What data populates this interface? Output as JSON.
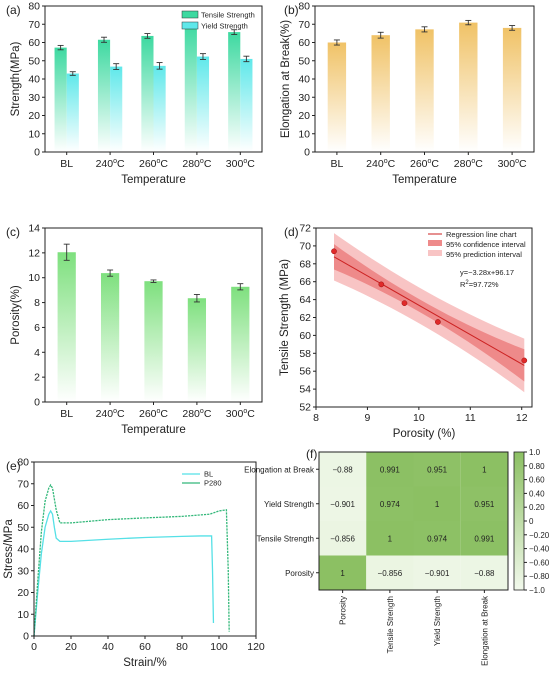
{
  "chart_data": [
    {
      "panel": "(a)",
      "type": "bar",
      "categories": [
        "BL",
        "240°C",
        "260°C",
        "280°C",
        "300°C"
      ],
      "xlabel": "Temperature",
      "ylabel": "Strength(MPa)",
      "ylim": [
        0,
        80
      ],
      "yticks": [
        0,
        10,
        20,
        30,
        40,
        50,
        60,
        70,
        80
      ],
      "legend_position": "top-right",
      "series": [
        {
          "name": "Tensile Strength",
          "values": [
            57.2,
            61.5,
            63.6,
            69.4,
            65.7
          ],
          "errors": [
            1.2,
            1.4,
            1.3,
            1.0,
            1.3
          ],
          "color": "#3dd9a0"
        },
        {
          "name": "Yield Strength",
          "values": [
            43.0,
            46.8,
            47.2,
            52.3,
            51.0
          ],
          "errors": [
            1.0,
            1.6,
            1.8,
            1.6,
            1.5
          ],
          "color": "#5fe8ea"
        }
      ]
    },
    {
      "panel": "(b)",
      "type": "bar",
      "categories": [
        "BL",
        "240°C",
        "260°C",
        "280°C",
        "300°C"
      ],
      "xlabel": "Temperature",
      "ylabel": "Elongation at Break(%)",
      "ylim": [
        0,
        80
      ],
      "yticks": [
        0,
        10,
        20,
        30,
        40,
        50,
        60,
        70,
        80
      ],
      "series": [
        {
          "values": [
            60.0,
            64.0,
            67.2,
            70.9,
            68.0
          ],
          "errors": [
            1.4,
            1.6,
            1.4,
            1.2,
            1.3
          ],
          "color": "#f0c266"
        }
      ]
    },
    {
      "panel": "(c)",
      "type": "bar",
      "categories": [
        "BL",
        "240°C",
        "260°C",
        "280°C",
        "300°C"
      ],
      "xlabel": "Temperature",
      "ylabel": "Porosity(%)",
      "ylim": [
        0,
        14
      ],
      "yticks": [
        0,
        2,
        4,
        6,
        8,
        10,
        12,
        14
      ],
      "series": [
        {
          "values": [
            12.05,
            10.37,
            9.72,
            8.35,
            9.27
          ],
          "errors": [
            0.65,
            0.25,
            0.1,
            0.3,
            0.25
          ],
          "color": "#7ee07e"
        }
      ]
    },
    {
      "panel": "(d)",
      "type": "scatter",
      "xlabel": "Porosity (%)",
      "ylabel": "Tensile Strength (MPa)",
      "xlim": [
        8,
        12.2
      ],
      "ylim": [
        52,
        72
      ],
      "xticks": [
        8,
        9,
        10,
        11,
        12
      ],
      "yticks": [
        52,
        54,
        56,
        58,
        60,
        62,
        64,
        66,
        68,
        70,
        72
      ],
      "points": [
        [
          8.35,
          69.4
        ],
        [
          9.27,
          65.7
        ],
        [
          9.72,
          63.6
        ],
        [
          10.37,
          61.5
        ],
        [
          12.05,
          57.2
        ]
      ],
      "legend": [
        "Regression line chart",
        "95% confidence interval",
        "95% prediction interval"
      ],
      "equation": "y=−3.28x+96.17",
      "r2_prefix": "R",
      "r2_sup": "2",
      "r2_suffix": "=97.72%",
      "fit": {
        "slope": -3.28,
        "intercept": 96.17
      }
    },
    {
      "panel": "(e)",
      "type": "line",
      "xlabel": "Strain/%",
      "ylabel": "Stress/MPa",
      "xlim": [
        0,
        120
      ],
      "ylim": [
        0,
        80
      ],
      "xticks": [
        0,
        20,
        40,
        60,
        80,
        100,
        120
      ],
      "yticks": [
        0,
        10,
        20,
        30,
        40,
        50,
        60,
        70,
        80
      ],
      "legend_position": "top-right",
      "series": [
        {
          "name": "BL",
          "color": "#55e0e6",
          "points": [
            [
              0,
              0
            ],
            [
              2,
              20
            ],
            [
              4,
              38
            ],
            [
              6,
              50
            ],
            [
              8,
              56
            ],
            [
              9,
              57.5
            ],
            [
              10,
              56
            ],
            [
              11,
              50
            ],
            [
              12,
              45
            ],
            [
              14,
              43.5
            ],
            [
              20,
              43.5
            ],
            [
              40,
              44.5
            ],
            [
              60,
              45.3
            ],
            [
              80,
              45.8
            ],
            [
              90,
              46
            ],
            [
              96,
              46
            ],
            [
              96.5,
              30
            ],
            [
              97,
              6
            ]
          ]
        },
        {
          "name": "P280",
          "color": "#33b87a",
          "points": [
            [
              0,
              0
            ],
            [
              2,
              25
            ],
            [
              4,
              48
            ],
            [
              6,
              62
            ],
            [
              8,
              68
            ],
            [
              9,
              69.4
            ],
            [
              10,
              68
            ],
            [
              12,
              58
            ],
            [
              14,
              52
            ],
            [
              20,
              52
            ],
            [
              40,
              53.5
            ],
            [
              60,
              54.3
            ],
            [
              80,
              55
            ],
            [
              95,
              56
            ],
            [
              100,
              57.5
            ],
            [
              104,
              58
            ],
            [
              105,
              30
            ],
            [
              105.5,
              2
            ]
          ]
        }
      ]
    },
    {
      "panel": "(f)",
      "type": "heatmap",
      "row_labels": [
        "Elongation at Break",
        "Yield Strength",
        "Tensile Strength",
        "Porosity"
      ],
      "col_labels": [
        "Porosity",
        "Tensile Strength",
        "Yield Strength",
        "Elongation at Break"
      ],
      "values": [
        [
          -0.88,
          0.991,
          0.951,
          1
        ],
        [
          -0.901,
          0.974,
          1,
          0.951
        ],
        [
          -0.856,
          1,
          0.974,
          0.991
        ],
        [
          1,
          -0.856,
          -0.901,
          -0.88
        ]
      ],
      "value_labels": [
        [
          "−0.88",
          "0.991",
          "0.951",
          "1"
        ],
        [
          "−0.901",
          "0.974",
          "1",
          "0.951"
        ],
        [
          "−0.856",
          "1",
          "0.974",
          "0.991"
        ],
        [
          "1",
          "−0.856",
          "−0.901",
          "−0.88"
        ]
      ],
      "colorbar_ticks": [
        "1.0",
        "0.80",
        "0.60",
        "0.40",
        "0.20",
        "0",
        "−0.20",
        "−0.40",
        "−0.60",
        "−0.80",
        "−1.0"
      ],
      "colorbar_range": [
        -1,
        1
      ],
      "colors": {
        "high": "#8cc063",
        "low": "#f2f9ec"
      }
    }
  ]
}
